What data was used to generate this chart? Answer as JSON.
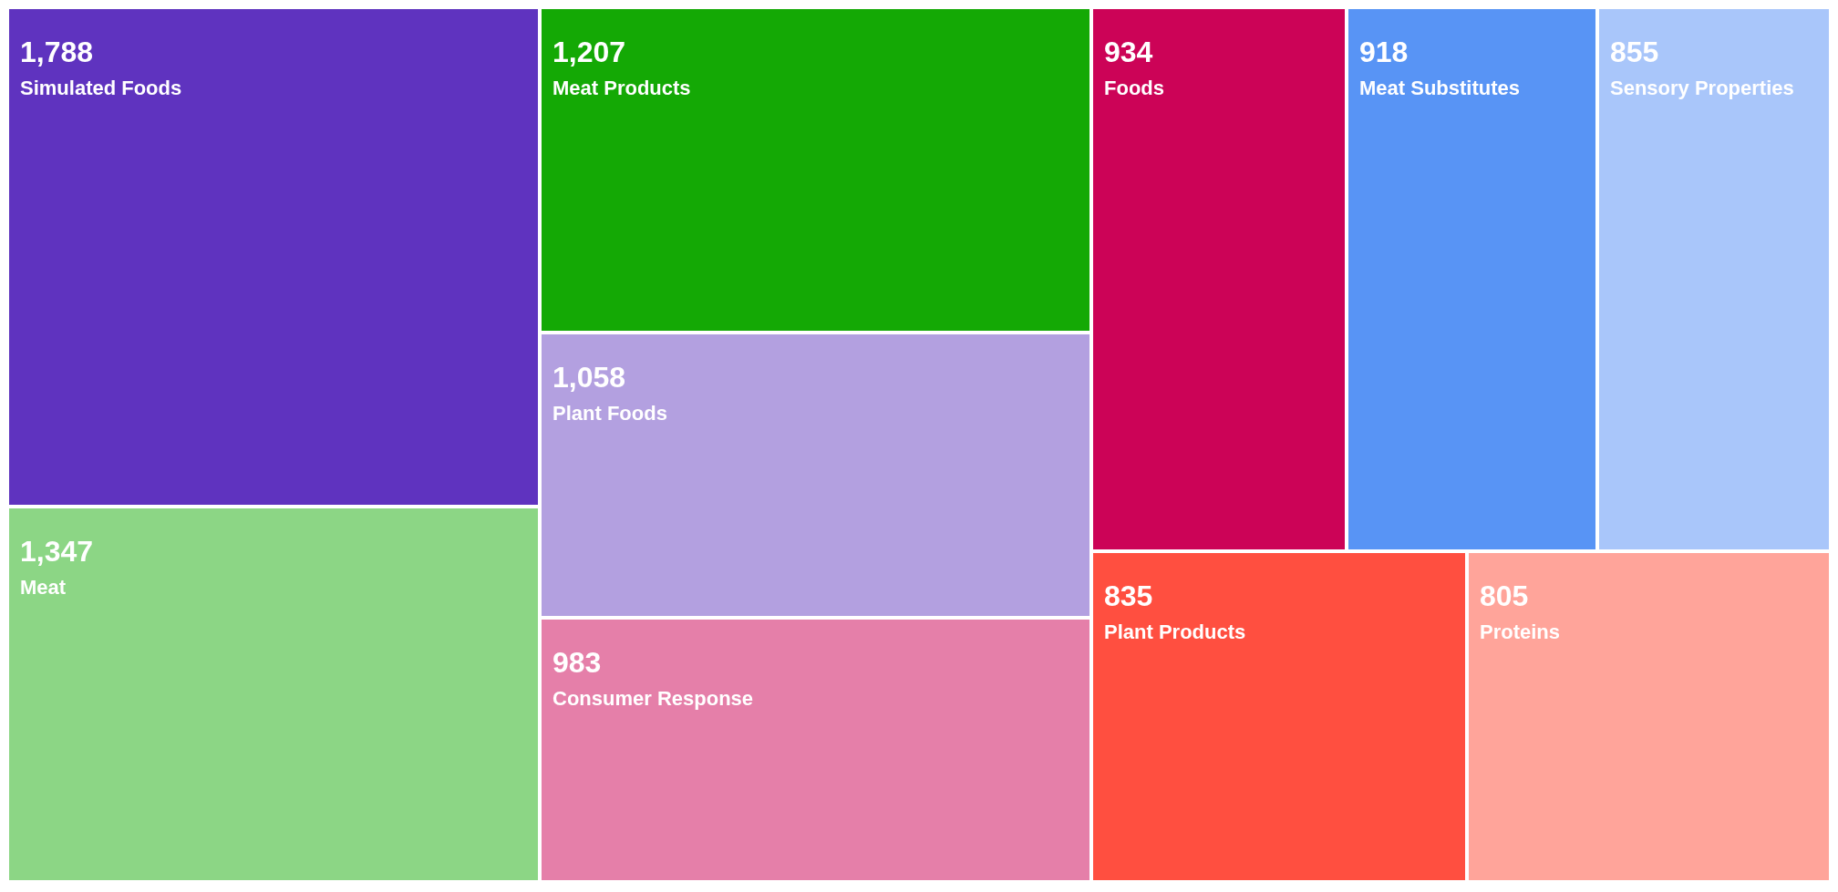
{
  "chart_data": {
    "type": "other",
    "categories": [
      "Simulated Foods",
      "Meat",
      "Meat Products",
      "Plant Foods",
      "Consumer Response",
      "Foods",
      "Meat Substitutes",
      "Sensory Properties",
      "Plant Products",
      "Proteins"
    ],
    "values": [
      1788,
      1347,
      1207,
      1058,
      983,
      934,
      918,
      855,
      835,
      805
    ],
    "colors": [
      "#5f33bf",
      "#8cd685",
      "#14a905",
      "#b3a0e0",
      "#e57fa9",
      "#cc0357",
      "#5894f5",
      "#a9c6fa",
      "#ff4f40",
      "#ffa49a"
    ],
    "value_labels": [
      "1,788",
      "1,347",
      "1,207",
      "1,058",
      "983",
      "934",
      "918",
      "855",
      "835",
      "805"
    ]
  }
}
